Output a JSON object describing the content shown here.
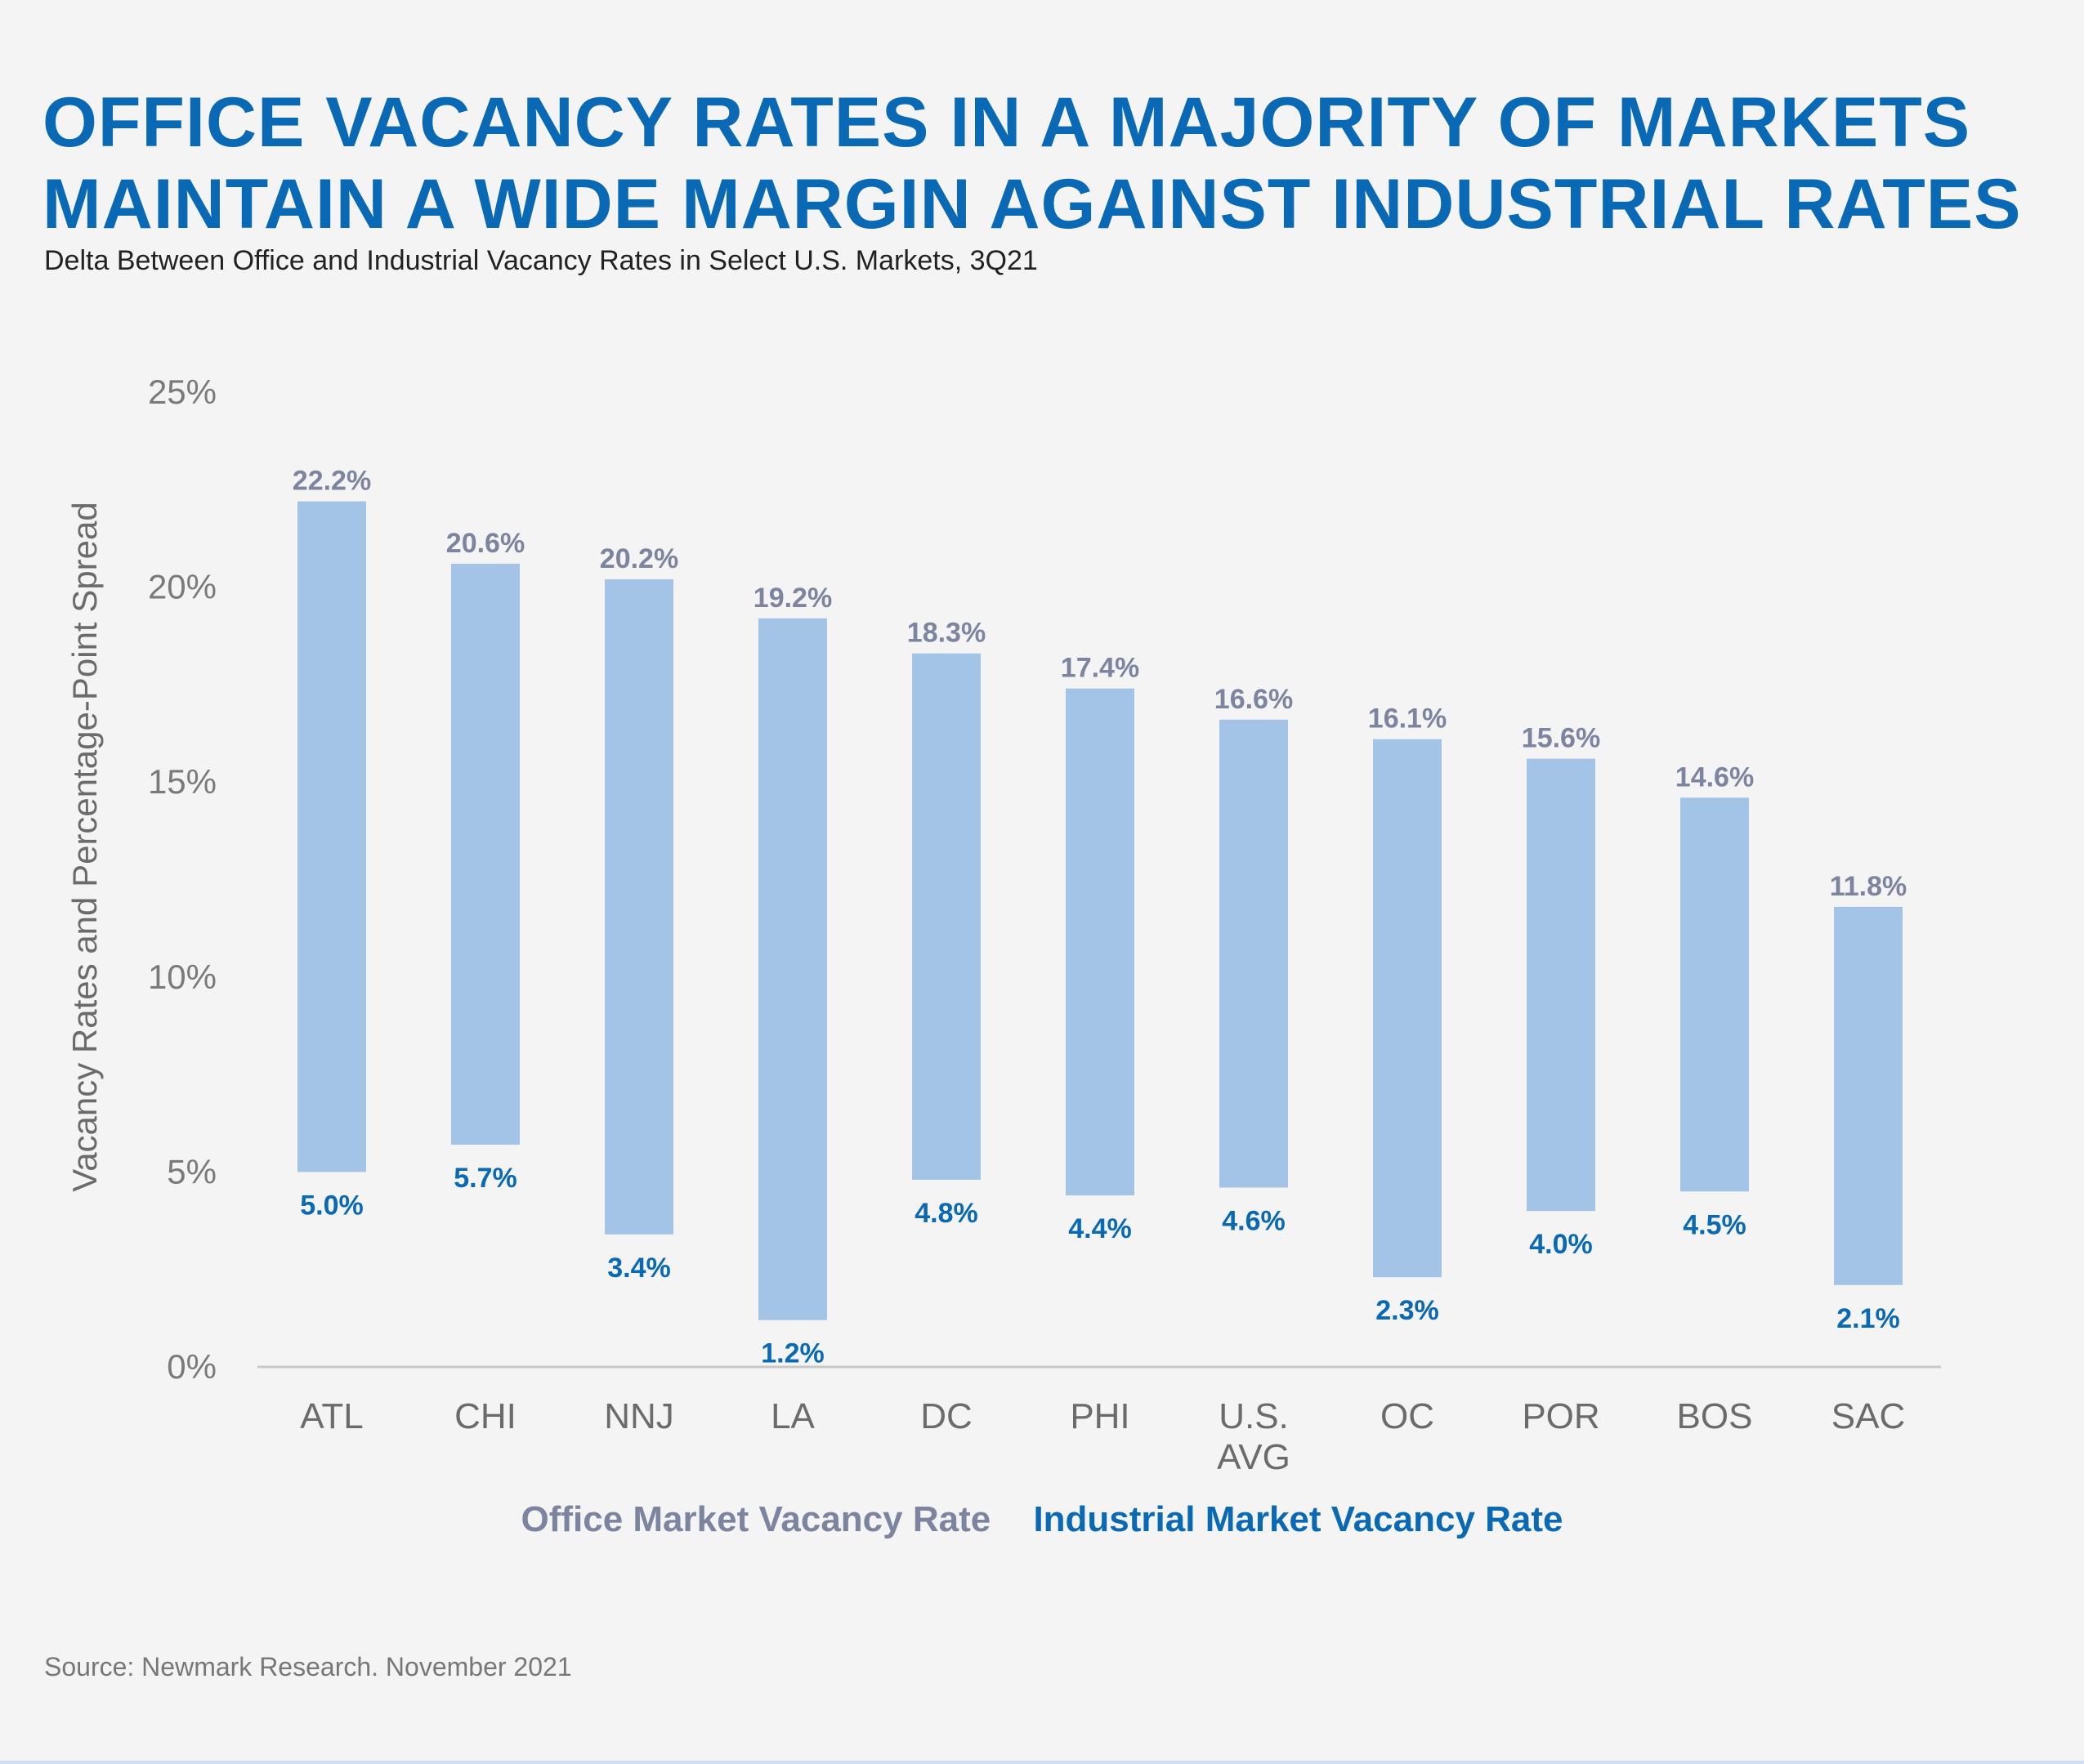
{
  "title_line1": "OFFICE VACANCY RATES IN A MAJORITY OF MARKETS",
  "title_line2": "MAINTAIN A WIDE MARGIN AGAINST INDUSTRIAL RATES",
  "subtitle": "Delta Between Office and Industrial Vacancy Rates in Select U.S. Markets, 3Q21",
  "source": "Source: Newmark Research. November 2021",
  "colors": {
    "bar": "#a3c4e6",
    "office": "#7d849f",
    "industrial": "#0a69b4",
    "axis": "#c8c8c8"
  },
  "chart_data": {
    "type": "bar",
    "subtype": "floating-range",
    "title": "OFFICE VACANCY RATES IN A MAJORITY OF MARKETS MAINTAIN A WIDE MARGIN AGAINST INDUSTRIAL RATES",
    "subtitle": "Delta Between Office and Industrial Vacancy Rates in Select U.S. Markets, 3Q21",
    "ylabel": "Vacancy  Rates and Percentage-Point Spread",
    "xlabel": "",
    "ylim": [
      0,
      25
    ],
    "yticks": [
      0,
      5,
      10,
      15,
      20,
      25
    ],
    "ytick_labels": [
      "0%",
      "5%",
      "10%",
      "15%",
      "20%",
      "25%"
    ],
    "categories": [
      [
        "ATL"
      ],
      [
        "CHI"
      ],
      [
        "NNJ"
      ],
      [
        "LA"
      ],
      [
        "DC"
      ],
      [
        "PHI"
      ],
      [
        "U.S.",
        "AVG"
      ],
      [
        "OC"
      ],
      [
        "POR"
      ],
      [
        "BOS"
      ],
      [
        "SAC"
      ]
    ],
    "series": [
      {
        "name": "Office Market Vacancy Rate",
        "values": [
          22.2,
          20.6,
          20.2,
          19.2,
          18.3,
          17.4,
          16.6,
          16.1,
          15.6,
          14.6,
          11.8
        ],
        "labels": [
          "22.2%",
          "20.6%",
          "20.2%",
          "19.2%",
          "18.3%",
          "17.4%",
          "16.6%",
          "16.1%",
          "15.6%",
          "14.6%",
          "11.8%"
        ]
      },
      {
        "name": "Industrial Market Vacancy Rate",
        "values": [
          5.0,
          5.7,
          3.4,
          1.2,
          4.8,
          4.4,
          4.6,
          2.3,
          4.0,
          4.5,
          2.1
        ],
        "labels": [
          "5.0%",
          "5.7%",
          "3.4%",
          "1.2%",
          "4.8%",
          "4.4%",
          "4.6%",
          "2.3%",
          "4.0%",
          "4.5%",
          "2.1%"
        ]
      }
    ],
    "legend_position": "bottom-center",
    "grid": false
  }
}
